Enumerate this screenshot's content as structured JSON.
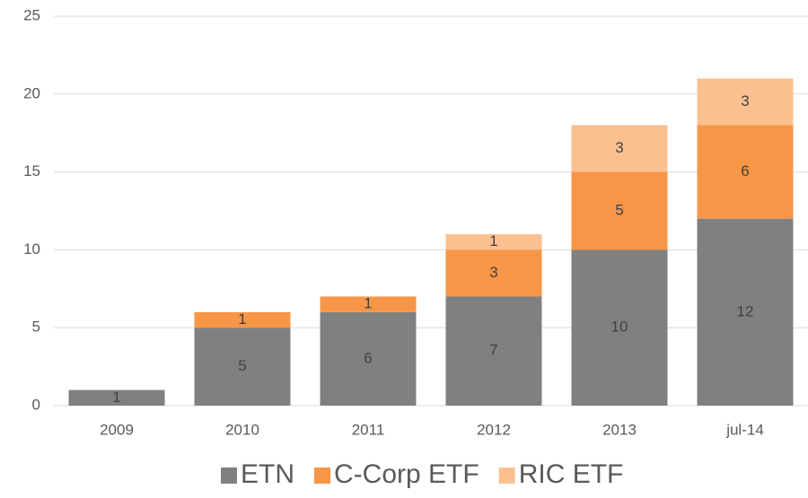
{
  "chart_data": {
    "type": "stacked_bar",
    "categories": [
      "2009",
      "2010",
      "2011",
      "2012",
      "2013",
      "jul-14"
    ],
    "series": [
      {
        "name": "ETN",
        "color": "#808080",
        "values": [
          1,
          5,
          6,
          7,
          10,
          12
        ]
      },
      {
        "name": "C-Corp ETF",
        "color": "#f79646",
        "values": [
          null,
          1,
          1,
          3,
          5,
          6
        ]
      },
      {
        "name": "RIC ETF",
        "color": "#fac090",
        "values": [
          null,
          null,
          null,
          1,
          3,
          3
        ]
      }
    ],
    "ylim": [
      0,
      25
    ],
    "yticks": [
      0,
      5,
      10,
      15,
      20,
      25
    ],
    "grid": true,
    "legend": "bottom"
  }
}
